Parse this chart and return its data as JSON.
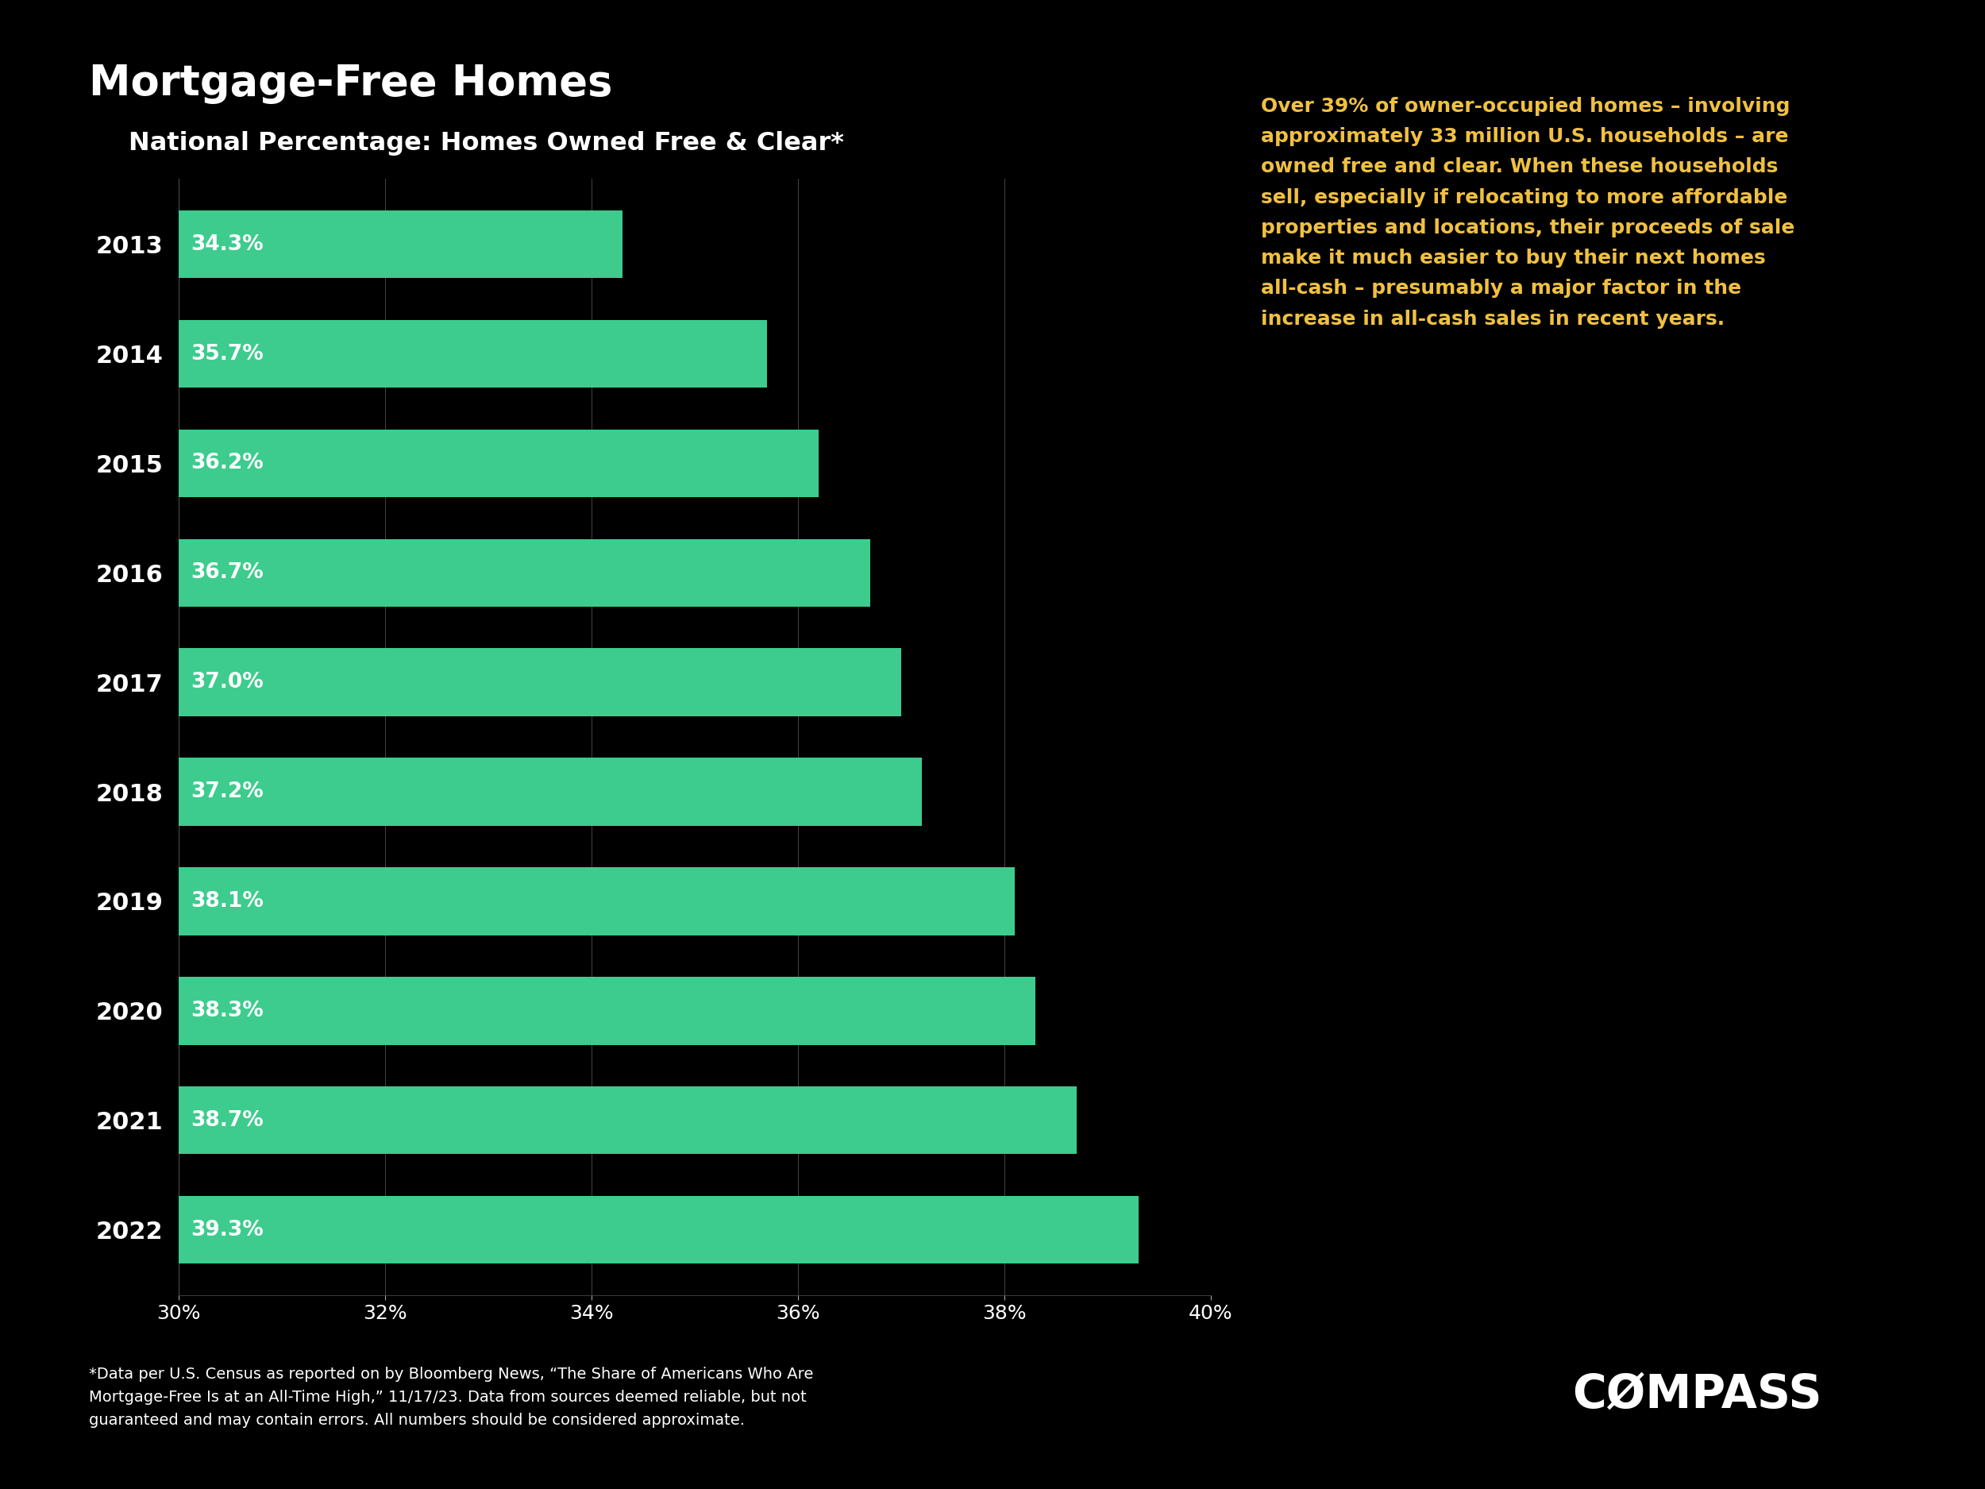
{
  "title": "Mortgage-Free Homes",
  "subtitle": "National Percentage: Homes Owned Free & Clear*",
  "years": [
    "2013",
    "2014",
    "2015",
    "2016",
    "2017",
    "2018",
    "2019",
    "2020",
    "2021",
    "2022"
  ],
  "values": [
    34.3,
    35.7,
    36.2,
    36.7,
    37.0,
    37.2,
    38.1,
    38.3,
    38.7,
    39.3
  ],
  "bar_color": "#3dcc8e",
  "background_color": "#000000",
  "text_color": "#ffffff",
  "annotation_color": "#f0c040",
  "xlim": [
    30,
    40
  ],
  "xticks": [
    30,
    32,
    34,
    36,
    38,
    40
  ],
  "annotation_text": "Over 39% of owner-occupied homes – involving\napproximately 33 million U.S. households – are\nowned free and clear. When these households\nsell, especially if relocating to more affordable\nproperties and locations, their proceeds of sale\nmake it much easier to buy their next homes\nall-cash – presumably a major factor in the\nincrease in all-cash sales in recent years.",
  "footnote_line1": "*Data per U.S. Census as reported on by Bloomberg News, “The Share of Americans Who Are",
  "footnote_line2": "Mortgage-Free Is at an All-Time High,” 11/17/23. Data from sources deemed reliable, but not",
  "footnote_line3": "guaranteed and may contain errors. All numbers should be considered approximate.",
  "compass_text": "CØMPASS",
  "title_fontsize": 38,
  "subtitle_fontsize": 23,
  "year_fontsize": 22,
  "bar_label_fontsize": 19,
  "annotation_fontsize": 18,
  "axis_tick_fontsize": 18,
  "footnote_fontsize": 14,
  "compass_fontsize": 42
}
